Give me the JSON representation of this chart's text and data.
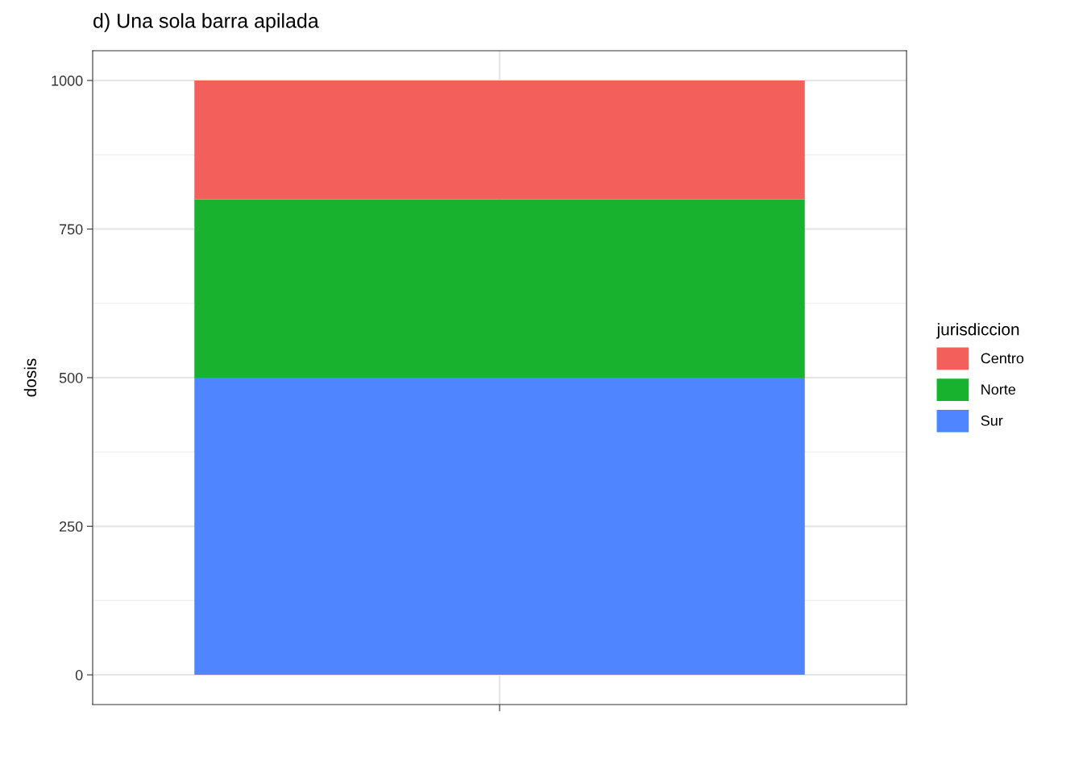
{
  "chart_data": {
    "type": "bar",
    "title": "d) Una sola barra apilada",
    "ylabel": "dosis",
    "legend_title": "jurisdiccion",
    "categories": [
      null
    ],
    "stacked": true,
    "series": [
      {
        "name": "Sur",
        "color": "#4f86ff",
        "values": [
          500
        ]
      },
      {
        "name": "Norte",
        "color": "#19b22f",
        "values": [
          300
        ]
      },
      {
        "name": "Centro",
        "color": "#f3605c",
        "values": [
          200
        ]
      }
    ],
    "ylim": [
      -50,
      1050
    ],
    "yticks": [
      0,
      250,
      500,
      750,
      1000
    ],
    "grid": true,
    "legend": "right"
  }
}
